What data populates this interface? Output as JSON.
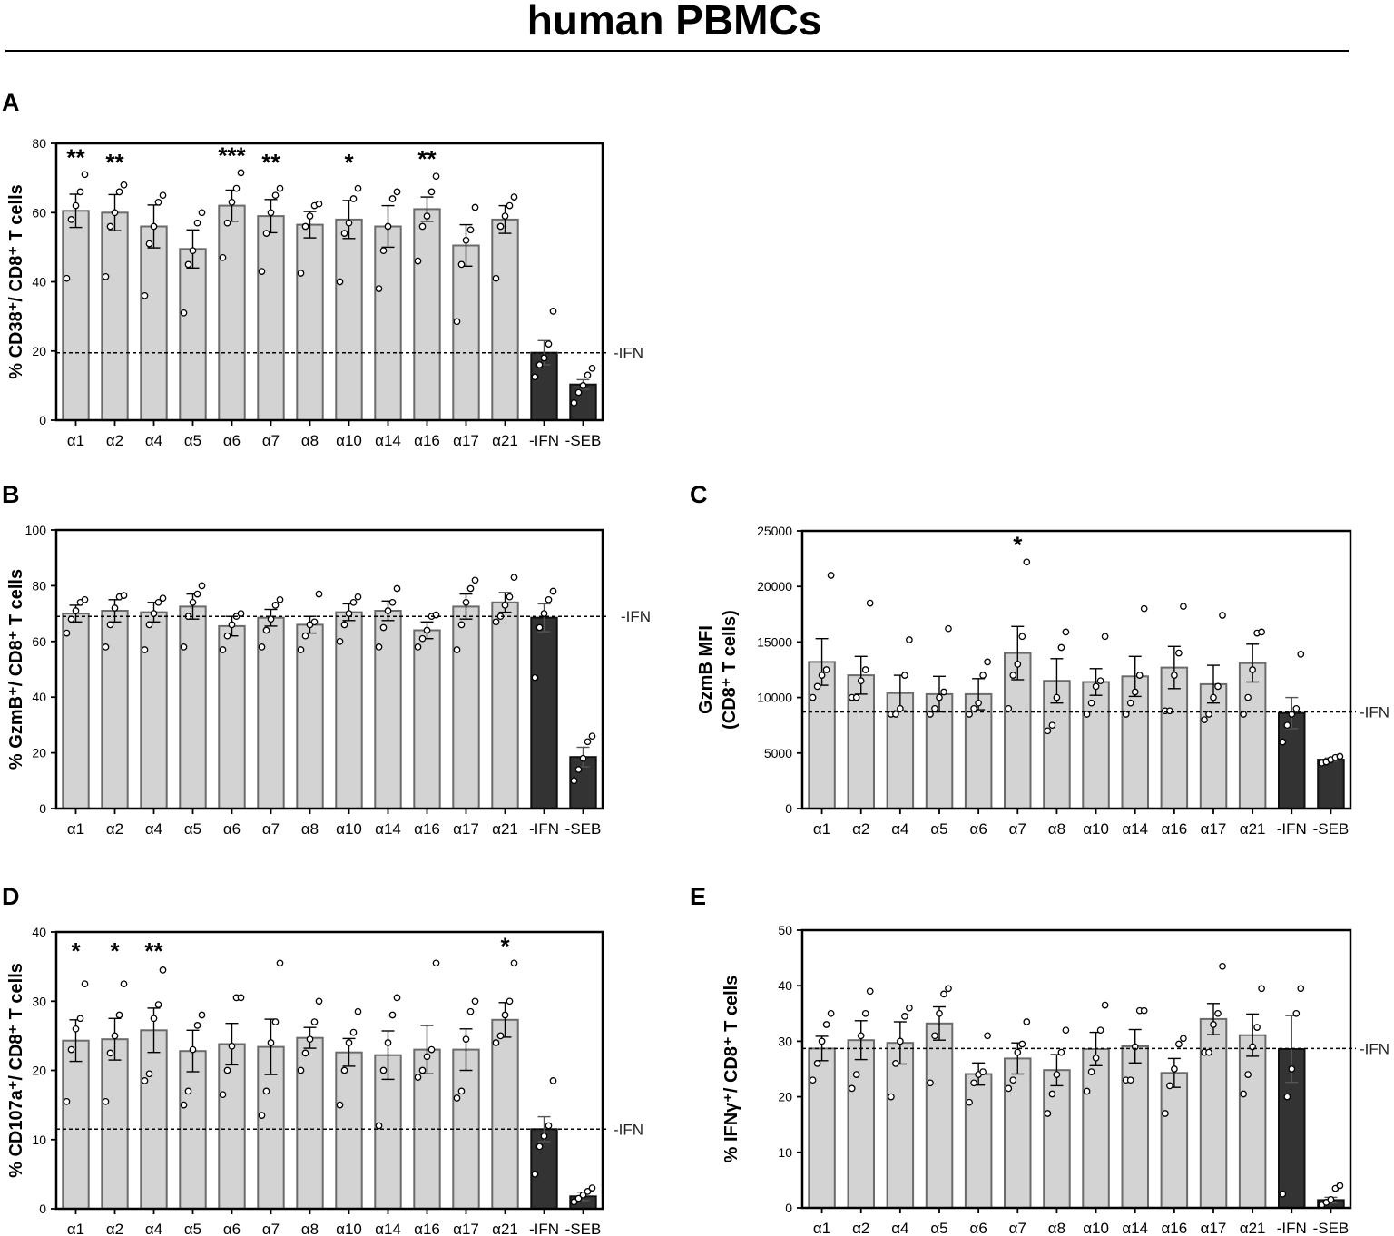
{
  "title": "human PBMCs",
  "colors": {
    "treated": "#d3d3d3",
    "treated_edge": "#6b6b6b",
    "control": "#333333",
    "axis": "#000000"
  },
  "chart_data": [
    {
      "panel": "A",
      "type": "bar",
      "ylabel": "% CD38⁺/ CD8⁺ T cells",
      "ylim": [
        0,
        80
      ],
      "yticks": [
        0,
        20,
        40,
        60,
        80
      ],
      "tick_labels": [
        "0",
        "20",
        "40",
        "60",
        "80"
      ],
      "categories": [
        "α1",
        "α2",
        "α4",
        "α5",
        "α6",
        "α7",
        "α8",
        "α10",
        "α14",
        "α16",
        "α17",
        "α21",
        "-IFN",
        "-SEB"
      ],
      "values": [
        60.5,
        60,
        56,
        49.5,
        62,
        59,
        56.5,
        58,
        56,
        61,
        50.5,
        58,
        19.5,
        10.3
      ],
      "errors": [
        4.8,
        5.2,
        6.2,
        5.5,
        4.5,
        4.8,
        3.8,
        5.5,
        6,
        3.5,
        6,
        4,
        3.5,
        1.4
      ],
      "points": [
        [
          41,
          58,
          62,
          66,
          71
        ],
        [
          41.5,
          56,
          60,
          66,
          68
        ],
        [
          36,
          51,
          56,
          63,
          65
        ],
        [
          31,
          45,
          49,
          57,
          60
        ],
        [
          47,
          57,
          63,
          67,
          71.5
        ],
        [
          43,
          54,
          60,
          65,
          67
        ],
        [
          42.5,
          56,
          59,
          62,
          62.5
        ],
        [
          40,
          54,
          57,
          64,
          67
        ],
        [
          38,
          49,
          56,
          64,
          66
        ],
        [
          46,
          56,
          59,
          66,
          70.5
        ],
        [
          28.5,
          45,
          52,
          55,
          61.5
        ],
        [
          41,
          56,
          59,
          62,
          64.5
        ],
        [
          12.5,
          16,
          18,
          22,
          31.5
        ],
        [
          5,
          8,
          10,
          13,
          15
        ]
      ],
      "annotations": [
        "**",
        "**",
        "",
        "",
        "***",
        "**",
        "",
        "*",
        "",
        "**",
        "",
        "",
        "",
        ""
      ],
      "ref_line": 19.5,
      "ref_label": "-IFN"
    },
    {
      "panel": "B",
      "type": "bar",
      "ylabel": "% GzmB⁺/ CD8⁺ T cells",
      "ylim": [
        0,
        100
      ],
      "yticks": [
        0,
        20,
        40,
        60,
        80,
        100
      ],
      "tick_labels": [
        "0",
        "20",
        "40",
        "60",
        "80",
        "100"
      ],
      "categories": [
        "α1",
        "α2",
        "α4",
        "α5",
        "α6",
        "α7",
        "α8",
        "α10",
        "α14",
        "α16",
        "α17",
        "α21",
        "-IFN",
        "-SEB"
      ],
      "values": [
        70,
        71,
        70.5,
        72.5,
        65.5,
        68.5,
        66,
        70.5,
        71,
        64,
        72.5,
        74,
        68.5,
        18.5
      ],
      "errors": [
        3,
        4,
        3.5,
        4.5,
        3.5,
        3,
        3,
        3,
        3.5,
        3,
        4.5,
        3.5,
        5,
        3.5
      ],
      "points": [
        [
          63,
          68,
          71,
          74,
          75
        ],
        [
          58,
          66,
          72,
          76,
          76.5
        ],
        [
          57,
          66,
          70,
          74,
          75.5
        ],
        [
          58,
          69,
          74,
          77,
          80
        ],
        [
          57,
          62,
          66,
          69,
          70
        ],
        [
          58,
          64,
          68,
          73,
          75
        ],
        [
          57,
          62,
          66,
          67,
          77
        ],
        [
          60,
          66,
          70,
          74,
          76
        ],
        [
          58,
          65,
          71,
          74,
          79
        ],
        [
          58,
          61,
          64,
          69,
          69.5
        ],
        [
          57,
          66,
          74,
          79,
          82
        ],
        [
          67,
          69,
          73,
          76,
          83
        ],
        [
          47,
          65,
          70,
          75,
          78
        ],
        [
          10,
          14,
          18,
          24,
          26
        ]
      ],
      "annotations": [
        "",
        "",
        "",
        "",
        "",
        "",
        "",
        "",
        "",
        "",
        "",
        "",
        "",
        ""
      ],
      "ref_line": 69,
      "ref_label": "-IFN"
    },
    {
      "panel": "C",
      "type": "bar",
      "ylabel": "GzmB MFI",
      "ylabel2": "(CD8⁺ T cells)",
      "ylim": [
        0,
        25000
      ],
      "yticks": [
        0,
        5000,
        10000,
        15000,
        20000,
        25000
      ],
      "tick_labels": [
        "0",
        "5000",
        "10000",
        "15000",
        "20000",
        "25000"
      ],
      "categories": [
        "α1",
        "α2",
        "α4",
        "α5",
        "α6",
        "α7",
        "α8",
        "α10",
        "α14",
        "α16",
        "α17",
        "α21",
        "-IFN",
        "-SEB"
      ],
      "values": [
        13200,
        12000,
        10400,
        10300,
        10300,
        14000,
        11500,
        11400,
        11900,
        12700,
        11200,
        13100,
        8600,
        4400
      ],
      "errors": [
        2100,
        1700,
        1600,
        1600,
        1400,
        2400,
        2000,
        1200,
        1800,
        1900,
        1700,
        1700,
        1400,
        150
      ],
      "points": [
        [
          10000,
          11000,
          12000,
          12500,
          21000
        ],
        [
          10000,
          10000,
          11500,
          12500,
          18500
        ],
        [
          8500,
          8500,
          9000,
          12000,
          15200
        ],
        [
          8500,
          9000,
          10000,
          10500,
          16200
        ],
        [
          8500,
          9000,
          9500,
          12000,
          13200
        ],
        [
          9000,
          12000,
          13000,
          15500,
          22200
        ],
        [
          7000,
          7500,
          10000,
          14500,
          15900
        ],
        [
          8500,
          9500,
          11000,
          11500,
          15500
        ],
        [
          8500,
          9500,
          10500,
          12000,
          18000
        ],
        [
          8800,
          8800,
          12000,
          14000,
          18200
        ],
        [
          8000,
          8500,
          10000,
          11000,
          17400
        ],
        [
          8500,
          10000,
          12500,
          15800,
          15900
        ],
        [
          6000,
          7500,
          8500,
          9000,
          13900
        ],
        [
          4100,
          4200,
          4400,
          4600,
          4700
        ]
      ],
      "annotations": [
        "",
        "",
        "",
        "",
        "",
        "*",
        "",
        "",
        "",
        "",
        "",
        "",
        "",
        ""
      ],
      "ref_line": 8700,
      "ref_label": "-IFN"
    },
    {
      "panel": "D",
      "type": "bar",
      "ylabel": "% CD107a⁺/ CD8⁺ T cells",
      "ylim": [
        0,
        40
      ],
      "yticks": [
        0,
        10,
        20,
        30,
        40
      ],
      "tick_labels": [
        "0",
        "10",
        "20",
        "30",
        "40"
      ],
      "categories": [
        "α1",
        "α2",
        "α4",
        "α5",
        "α6",
        "α7",
        "α8",
        "α10",
        "α14",
        "α16",
        "α17",
        "α21",
        "-IFN",
        "-SEB"
      ],
      "values": [
        24.3,
        24.5,
        25.8,
        22.8,
        23.8,
        23.4,
        24.7,
        22.6,
        22.2,
        23,
        23,
        27.3,
        11.5,
        1.8
      ],
      "errors": [
        3,
        3,
        3.2,
        3,
        3,
        4,
        1.5,
        2,
        3.5,
        3.5,
        3,
        2.5,
        1.8,
        0.6
      ],
      "points": [
        [
          15.5,
          23,
          26,
          27.5,
          32.5
        ],
        [
          15.5,
          22.5,
          25,
          28,
          32.5
        ],
        [
          18.5,
          19.5,
          27.5,
          29.5,
          34.5
        ],
        [
          15,
          17,
          23,
          26.5,
          28
        ],
        [
          16.5,
          20,
          23.5,
          30.5,
          30.5
        ],
        [
          13.5,
          17,
          24,
          27,
          35.5
        ],
        [
          20,
          22.5,
          24.5,
          27,
          30
        ],
        [
          15,
          20,
          24,
          25.5,
          28.5
        ],
        [
          12,
          20,
          24,
          28,
          30.5
        ],
        [
          19,
          20,
          22,
          23,
          35.5
        ],
        [
          16,
          17,
          24.5,
          28.5,
          30
        ],
        [
          24,
          25,
          28,
          30,
          35.5
        ],
        [
          5,
          9,
          10.5,
          12,
          18.5
        ],
        [
          1,
          1.5,
          2,
          2.5,
          3
        ]
      ],
      "annotations": [
        "*",
        "*",
        "**",
        "",
        "",
        "",
        "",
        "",
        "",
        "",
        "",
        "*",
        "",
        ""
      ],
      "ref_line": 11.5,
      "ref_label": "-IFN"
    },
    {
      "panel": "E",
      "type": "bar",
      "ylabel": "% IFNγ⁺/ CD8⁺ T cells",
      "ylim": [
        0,
        50
      ],
      "yticks": [
        0,
        10,
        20,
        30,
        40,
        50
      ],
      "tick_labels": [
        "0",
        "10",
        "20",
        "30",
        "40",
        "50"
      ],
      "categories": [
        "α1",
        "α2",
        "α4",
        "α5",
        "α6",
        "α7",
        "α8",
        "α10",
        "α14",
        "α16",
        "α17",
        "α21",
        "-IFN",
        "-SEB"
      ],
      "values": [
        28.7,
        30.2,
        29.7,
        33.2,
        24.1,
        26.9,
        24.8,
        28.6,
        29.1,
        24.3,
        34,
        31.1,
        28.6,
        1.4
      ],
      "errors": [
        2.2,
        3.5,
        3.8,
        3,
        2,
        2.8,
        2.8,
        3,
        3,
        2.6,
        2.8,
        3.8,
        6,
        0.5
      ],
      "points": [
        [
          23,
          26,
          30,
          33,
          35
        ],
        [
          21.5,
          24,
          31,
          35,
          39
        ],
        [
          20,
          26,
          30,
          34.5,
          36
        ],
        [
          22.5,
          31,
          35,
          38.5,
          39.5
        ],
        [
          19,
          22.5,
          24,
          24.5,
          31
        ],
        [
          21.5,
          23,
          28,
          29.5,
          33.5
        ],
        [
          17,
          20.5,
          24,
          28,
          32
        ],
        [
          21,
          24.5,
          27,
          32,
          36.5
        ],
        [
          23,
          23,
          29,
          35.5,
          35.5
        ],
        [
          17,
          22,
          25,
          29.5,
          30.5
        ],
        [
          28,
          28,
          33,
          35,
          43.5
        ],
        [
          20.5,
          24,
          29,
          32.5,
          39.5
        ],
        [
          2.5,
          20,
          25,
          35,
          39.5
        ],
        [
          0.5,
          1,
          1.5,
          3.5,
          4
        ]
      ],
      "annotations": [
        "",
        "",
        "",
        "",
        "",
        "",
        "",
        "",
        "",
        "",
        "",
        "",
        "",
        ""
      ],
      "ref_line": 28.7,
      "ref_label": "-IFN"
    }
  ]
}
